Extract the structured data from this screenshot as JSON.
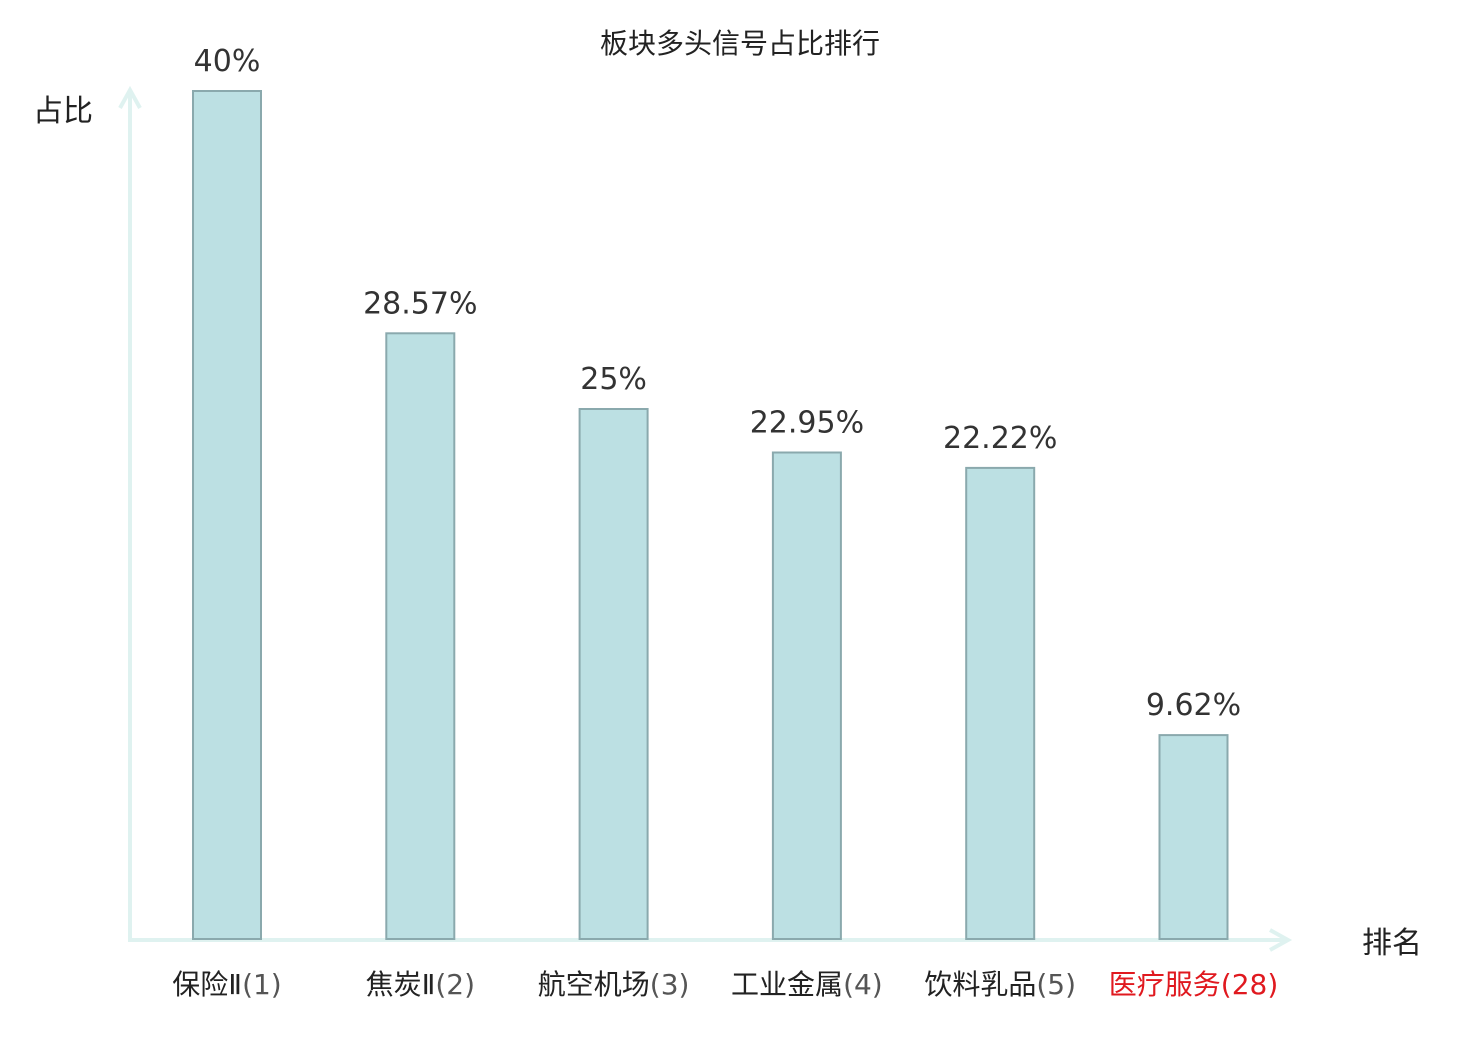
{
  "chart_data": {
    "type": "bar",
    "title": "板块多头信号占比排行",
    "ylabel": "占比",
    "xlabel": "排名",
    "categories": [
      {
        "name": "保险Ⅱ",
        "rank": "(1)"
      },
      {
        "name": "焦炭Ⅱ",
        "rank": "(2)"
      },
      {
        "name": "航空机场",
        "rank": "(3)"
      },
      {
        "name": "工业金属",
        "rank": "(4)"
      },
      {
        "name": "饮料乳品",
        "rank": "(5)"
      },
      {
        "name": "医疗服务",
        "rank": "(28)"
      }
    ],
    "values": [
      40,
      28.57,
      25,
      22.95,
      22.22,
      9.62
    ],
    "value_labels": [
      "40%",
      "28.57%",
      "25%",
      "22.95%",
      "22.22%",
      "9.62%"
    ],
    "highlight_index": 5,
    "ylim": [
      0,
      40
    ],
    "grid": false,
    "colors": {
      "bar_fill": "#bce0e3",
      "bar_stroke": "#8aa9ad",
      "axis": "#dff2f0",
      "highlight_text": "#e0191f",
      "rank_text": "#555555",
      "text": "#222222"
    }
  }
}
